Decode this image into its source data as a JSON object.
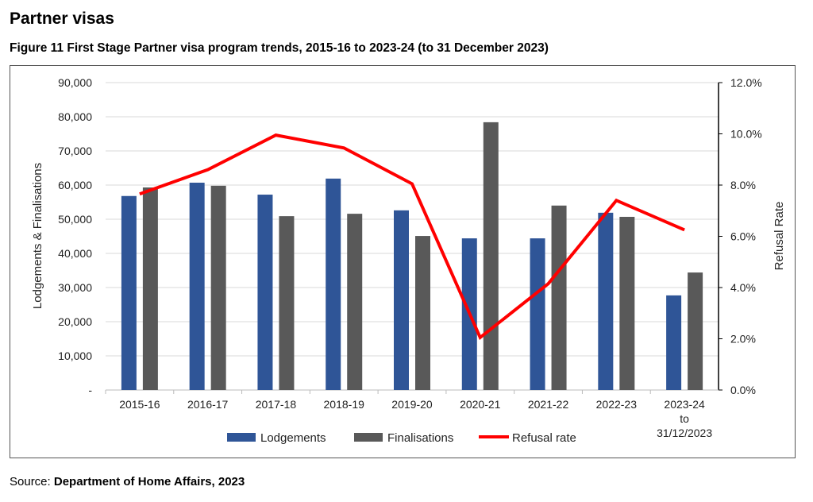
{
  "heading": "Partner visas",
  "figure_title": "Figure 11 First Stage Partner visa program trends, 2015-16 to 2023-24 (to 31 December 2023)",
  "source_label": "Source: ",
  "source_text": "Department of Home Affairs, 2023",
  "chart_data": {
    "type": "bar",
    "categories": [
      "2015-16",
      "2016-17",
      "2017-18",
      "2018-19",
      "2019-20",
      "2020-21",
      "2021-22",
      "2022-23",
      "2023-24 to 31/12/2023"
    ],
    "category_lines": [
      [
        "2015-16"
      ],
      [
        "2016-17"
      ],
      [
        "2017-18"
      ],
      [
        "2018-19"
      ],
      [
        "2019-20"
      ],
      [
        "2020-21"
      ],
      [
        "2021-22"
      ],
      [
        "2022-23"
      ],
      [
        "2023-24",
        "to",
        "31/12/2023"
      ]
    ],
    "series": [
      {
        "name": "Lodgements",
        "type": "bar",
        "axis": "left",
        "color": "#2F5597",
        "values": [
          56800,
          60700,
          57200,
          61900,
          52600,
          44400,
          44400,
          51900,
          27700
        ]
      },
      {
        "name": "Finalisations",
        "type": "bar",
        "axis": "left",
        "color": "#595959",
        "values": [
          59300,
          59800,
          50900,
          51600,
          45100,
          78400,
          54000,
          50700,
          34400
        ]
      },
      {
        "name": "Refusal rate",
        "type": "line",
        "axis": "right",
        "color": "#FF0000",
        "values": [
          7.65,
          8.6,
          9.95,
          9.45,
          8.05,
          2.05,
          4.15,
          7.4,
          6.25
        ]
      }
    ],
    "ylabel": "Lodgements & Finalisations",
    "ylim": [
      0,
      90000
    ],
    "yticks": [
      "-",
      "10,000",
      "20,000",
      "30,000",
      "40,000",
      "50,000",
      "60,000",
      "70,000",
      "80,000",
      "90,000"
    ],
    "y2label": "Refusal Rate",
    "y2lim": [
      0,
      12
    ],
    "y2ticks": [
      "0.0%",
      "2.0%",
      "4.0%",
      "6.0%",
      "8.0%",
      "10.0%",
      "12.0%"
    ],
    "grid": true,
    "legend": "bottom"
  }
}
